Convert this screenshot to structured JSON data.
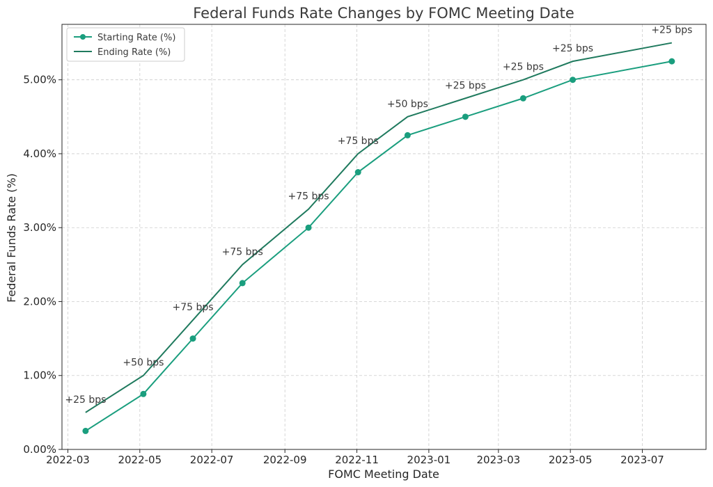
{
  "chart_data": {
    "type": "line",
    "title": "Federal Funds Rate Changes by FOMC Meeting Date",
    "xlabel": "FOMC Meeting Date",
    "ylabel": "Federal Funds Rate (%)",
    "x_ticks": [
      "2022-03",
      "2022-05",
      "2022-07",
      "2022-09",
      "2022-11",
      "2023-01",
      "2023-03",
      "2023-05",
      "2023-07"
    ],
    "y_ticks": [
      "0.00%",
      "1.00%",
      "2.00%",
      "3.00%",
      "4.00%",
      "5.00%"
    ],
    "ylim": [
      0,
      5.75
    ],
    "xlim": [
      "2022-02-24",
      "2023-08-24"
    ],
    "grid": true,
    "legend_position": "top-left",
    "x": [
      "2022-03-16",
      "2022-05-04",
      "2022-06-15",
      "2022-07-27",
      "2022-09-21",
      "2022-11-02",
      "2022-12-14",
      "2023-02-01",
      "2023-03-22",
      "2023-05-03",
      "2023-07-26"
    ],
    "series": [
      {
        "name": "Starting Rate (%)",
        "color": "#1a9e7e",
        "marker": true,
        "values": [
          0.25,
          0.75,
          1.5,
          2.25,
          3.0,
          3.75,
          4.25,
          4.5,
          4.75,
          5.0,
          5.25
        ]
      },
      {
        "name": "Ending Rate (%)",
        "color": "#1f7a5e",
        "marker": false,
        "values": [
          0.5,
          1.0,
          1.75,
          2.5,
          3.25,
          4.0,
          4.5,
          4.75,
          5.0,
          5.25,
          5.5
        ]
      }
    ],
    "annotations": [
      "+25 bps",
      "+50 bps",
      "+75 bps",
      "+75 bps",
      "+75 bps",
      "+75 bps",
      "+50 bps",
      "+25 bps",
      "+25 bps",
      "+25 bps",
      "+25 bps"
    ]
  }
}
